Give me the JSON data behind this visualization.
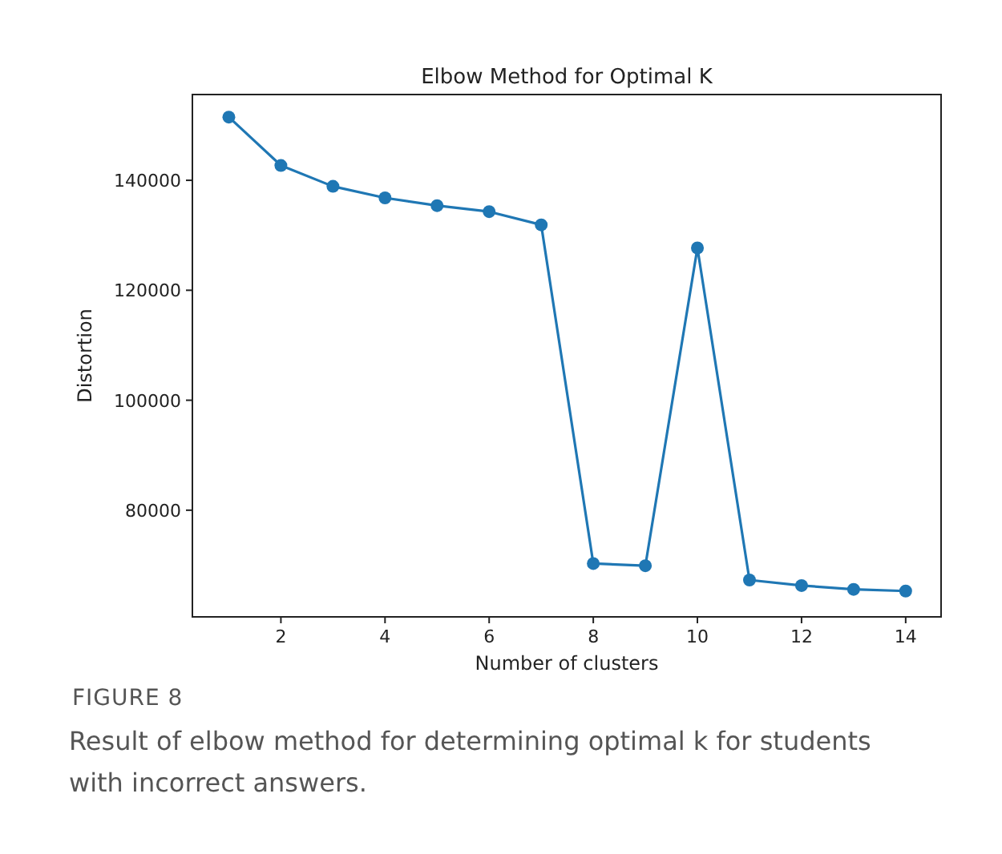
{
  "chart_data": {
    "type": "line",
    "title": "Elbow Method for Optimal K",
    "xlabel": "Number of clusters",
    "ylabel": "Distortion",
    "x": [
      1,
      2,
      3,
      4,
      5,
      6,
      7,
      8,
      9,
      10,
      11,
      12,
      13,
      14
    ],
    "series": [
      {
        "color": "#1f77b4",
        "values": [
          151500,
          142700,
          138900,
          136800,
          135400,
          134300,
          131900,
          70300,
          69900,
          127700,
          67300,
          66300,
          65600,
          65300
        ]
      }
    ],
    "xlim": [
      0.3,
      14.68
    ],
    "ylim": [
      60600,
      155600
    ],
    "xticks": [
      2,
      4,
      6,
      8,
      10,
      12,
      14
    ],
    "yticks": [
      80000,
      100000,
      120000,
      140000
    ],
    "marker": "circle",
    "line_style": "solid",
    "grid": false,
    "annotations": [
      "FIGURE 8",
      "Result of elbow method for determining optimal k for students with incorrect answers."
    ]
  }
}
